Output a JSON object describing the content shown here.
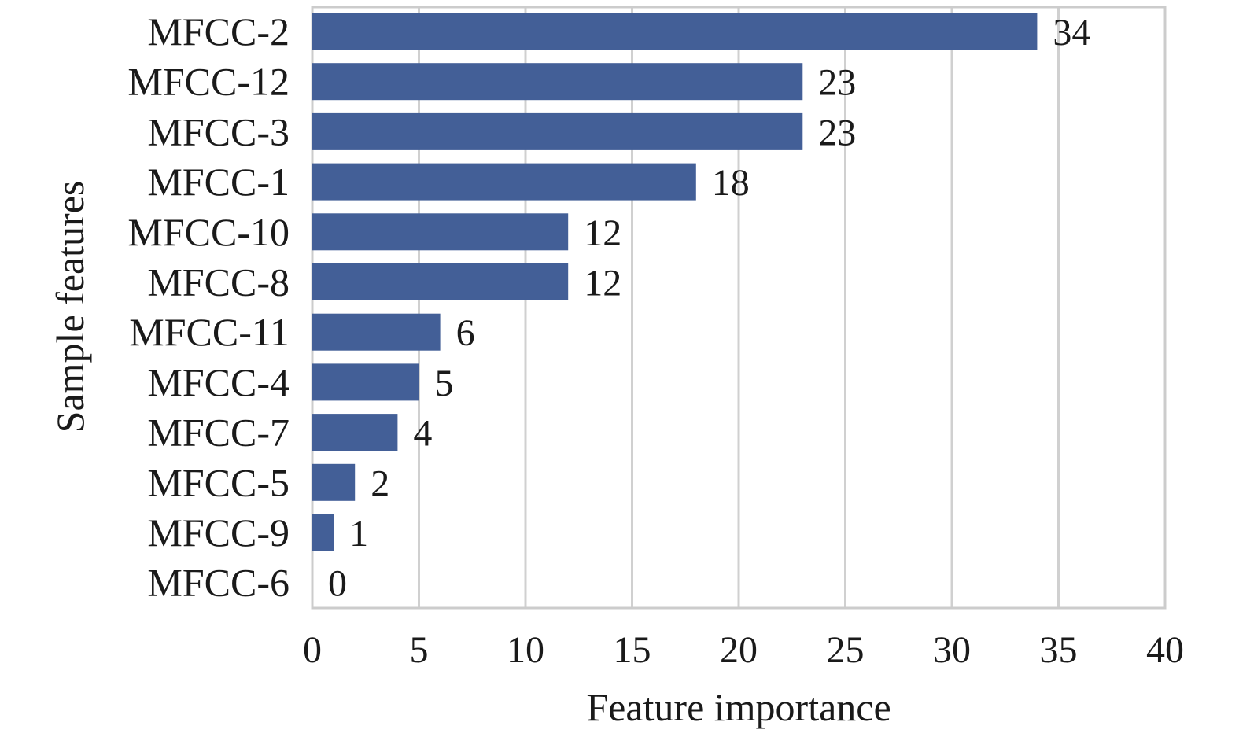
{
  "chart_data": {
    "type": "bar",
    "orientation": "horizontal",
    "categories": [
      "MFCC-2",
      "MFCC-12",
      "MFCC-3",
      "MFCC-1",
      "MFCC-10",
      "MFCC-8",
      "MFCC-11",
      "MFCC-4",
      "MFCC-7",
      "MFCC-5",
      "MFCC-9",
      "MFCC-6"
    ],
    "values": [
      34,
      23,
      23,
      18,
      12,
      12,
      6,
      5,
      4,
      2,
      1,
      0
    ],
    "xlabel": "Feature importance",
    "ylabel": "Sample features",
    "xlim": [
      0,
      40
    ],
    "xticks": [
      0,
      5,
      10,
      15,
      20,
      25,
      30,
      35,
      40
    ],
    "grid": "vertical",
    "legend": "none",
    "data_labels": true
  },
  "colors": {
    "bar": "#435f97",
    "grid": "#d0d0d0",
    "frame": "#cccccc",
    "text": "#1a1a1a"
  }
}
